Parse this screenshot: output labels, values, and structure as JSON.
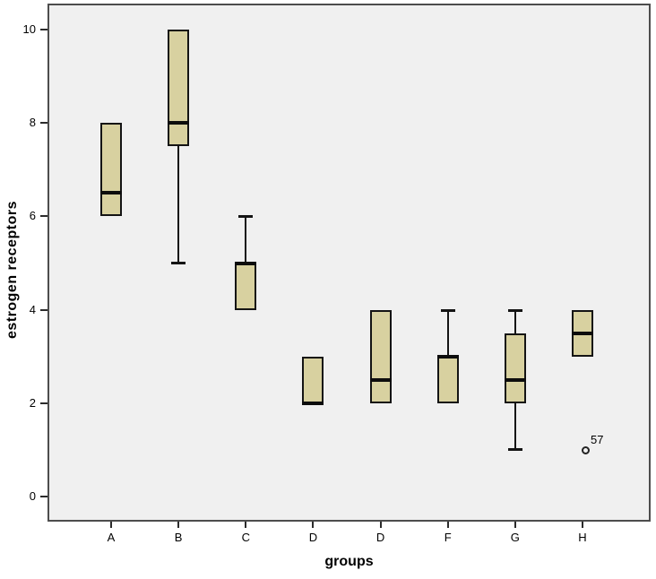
{
  "chart_data": {
    "type": "boxplot",
    "title": "",
    "xlabel": "groups",
    "ylabel": "estrogen receptors",
    "ylim": [
      -0.55,
      10.55
    ],
    "yticks": [
      0,
      2,
      4,
      6,
      8,
      10
    ],
    "categories": [
      "A",
      "B",
      "C",
      "D",
      "D",
      "F",
      "G",
      "H"
    ],
    "grid": false,
    "plot_bg": "#f0f0f0",
    "box_fill": "#d8d1a0",
    "box_border": "#141414",
    "boxes": [
      {
        "group": "A",
        "q1": 6,
        "median": 6.5,
        "q3": 8,
        "whisker_low": null,
        "whisker_high": null,
        "outliers": []
      },
      {
        "group": "B",
        "q1": 7.5,
        "median": 8,
        "q3": 10,
        "whisker_low": 5,
        "whisker_high": null,
        "outliers": []
      },
      {
        "group": "C",
        "q1": 4,
        "median": 5,
        "q3": 5,
        "whisker_low": null,
        "whisker_high": 6,
        "outliers": []
      },
      {
        "group": "D",
        "q1": 2,
        "median": 2,
        "q3": 3,
        "whisker_low": null,
        "whisker_high": null,
        "outliers": []
      },
      {
        "group": "D",
        "q1": 2,
        "median": 2.5,
        "q3": 4,
        "whisker_low": null,
        "whisker_high": null,
        "outliers": []
      },
      {
        "group": "F",
        "q1": 2,
        "median": 3,
        "q3": 3,
        "whisker_low": null,
        "whisker_high": 4,
        "outliers": []
      },
      {
        "group": "G",
        "q1": 2,
        "median": 2.5,
        "q3": 3.5,
        "whisker_low": 1,
        "whisker_high": 4,
        "outliers": []
      },
      {
        "group": "H",
        "q1": 3,
        "median": 3.5,
        "q3": 4,
        "whisker_low": null,
        "whisker_high": null,
        "outliers": [
          {
            "value": 1,
            "label": "57"
          }
        ]
      }
    ]
  }
}
